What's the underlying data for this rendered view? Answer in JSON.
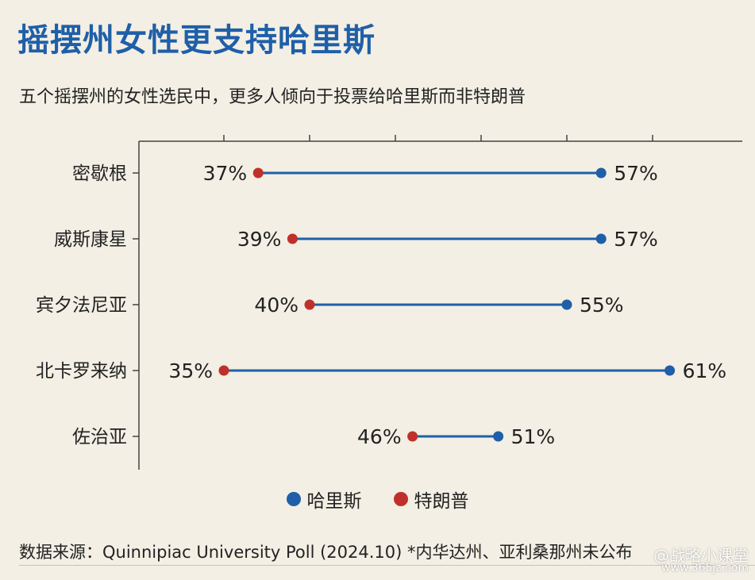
{
  "title": "摇摆州女性更支持哈里斯",
  "subtitle": "五个摇摆州的女性选民中，更多人倾向于投票给哈里斯而非特朗普",
  "chart_data": {
    "type": "dumbbell",
    "categories": [
      "密歇根",
      "威斯康星",
      "宾夕法尼亚",
      "北卡罗来纳",
      "佐治亚"
    ],
    "series": [
      {
        "name": "哈里斯",
        "color": "#1f5fa8",
        "values": [
          57,
          57,
          55,
          61,
          51
        ],
        "labels": [
          "57%",
          "57%",
          "55%",
          "61%",
          "51%"
        ]
      },
      {
        "name": "特朗普",
        "color": "#c0302b",
        "values": [
          37,
          39,
          40,
          35,
          46
        ],
        "labels": [
          "37%",
          "39%",
          "40%",
          "35%",
          "46%"
        ]
      }
    ],
    "xlim": [
      30,
      65
    ],
    "grid": false,
    "legend_position": "bottom-center"
  },
  "source": "数据来源：Quinnipiac University Poll (2024.10) *内华达州、亚利桑那州未公布",
  "watermark": {
    "text": "@战略小课堂",
    "url": "www.365jz.com"
  }
}
